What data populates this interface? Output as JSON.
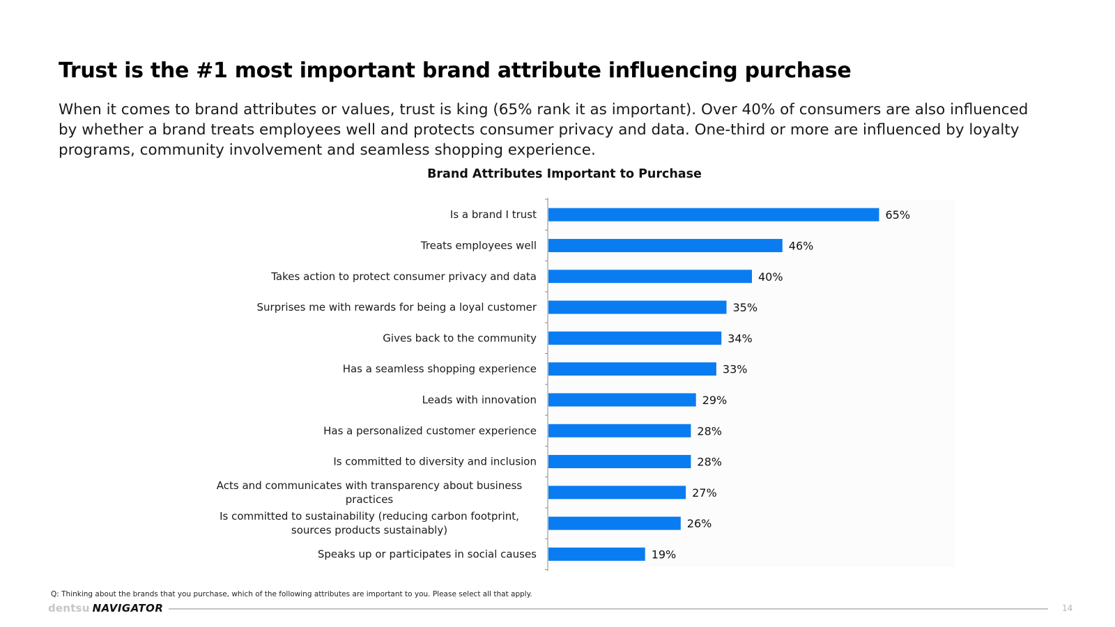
{
  "slide": {
    "headline": "Trust is the #1 most important brand attribute influencing purchase",
    "lede": "When it comes to brand attributes or values, trust is king (65% rank it as important). Over 40% of consumers are also influenced by whether a brand treats employees well and protects consumer privacy and data. One-third or more are influenced by loyalty programs, community involvement and seamless shopping experience.",
    "footnote": "Q: Thinking about the brands that you purchase, which of the following attributes are important to you. Please select all that apply.",
    "brand_name": "dentsu",
    "product_name": "NAVIGATOR",
    "page_number": "14"
  },
  "chart_data": {
    "type": "bar",
    "orientation": "horizontal",
    "title": "Brand Attributes Important to Purchase",
    "xlabel": "",
    "ylabel": "",
    "categories": [
      "Is a brand I trust",
      "Treats employees well",
      "Takes action to protect consumer privacy and data",
      "Surprises me with rewards for being a loyal customer",
      "Gives back to the community",
      "Has a seamless shopping experience",
      "Leads with innovation",
      "Has a personalized customer experience",
      "Is committed to diversity and inclusion",
      "Acts and communicates with transparency about business practices",
      "Is committed to sustainability (reducing carbon footprint, sources products sustainably)",
      "Speaks up or participates in social causes"
    ],
    "values": [
      65,
      46,
      40,
      35,
      34,
      33,
      29,
      28,
      28,
      27,
      26,
      19
    ],
    "value_labels": [
      "65%",
      "46%",
      "40%",
      "35%",
      "34%",
      "33%",
      "29%",
      "28%",
      "28%",
      "27%",
      "26%",
      "19%"
    ],
    "xlim": [
      0,
      80
    ],
    "grid": false,
    "legend": "none",
    "bar_color": "#0a7cf2"
  }
}
